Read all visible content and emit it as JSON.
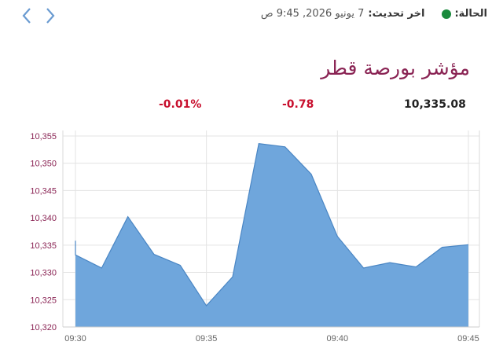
{
  "nav": {
    "prev_icon": "chevron-left-icon",
    "next_icon": "chevron-right-icon"
  },
  "status": {
    "label": "الحالة:",
    "indicator_color": "#1a8a3c",
    "update_label": "اخر تحديث:",
    "update_value": "7 يونيو 2026, 9:45 ص"
  },
  "title": "مؤشر بورصة قطر",
  "stats": {
    "value": "10,335.08",
    "change": "-0.78",
    "change_pct": "-0.01%"
  },
  "colors": {
    "accent": "#8a2454",
    "negative": "#c8102e",
    "area_fill": "#6fa6dc",
    "area_line": "#4a86c4"
  },
  "chart_data": {
    "type": "area",
    "x": [
      "09:30",
      "09:31",
      "09:32",
      "09:33",
      "09:34",
      "09:35",
      "09:36",
      "09:37",
      "09:38",
      "09:39",
      "09:40",
      "09:41",
      "09:42",
      "09:43",
      "09:44",
      "09:45"
    ],
    "values": [
      10333.2,
      10330.8,
      10340.2,
      10333.3,
      10331.3,
      10323.9,
      10329.2,
      10353.6,
      10353.0,
      10348.0,
      10336.6,
      10330.8,
      10331.8,
      10331.0,
      10334.6,
      10335.08
    ],
    "start_value": 10335.8,
    "yticks": [
      "10,320",
      "10,325",
      "10,330",
      "10,335",
      "10,340",
      "10,345",
      "10,350",
      "10,355"
    ],
    "xticks": [
      "09:30",
      "09:35",
      "09:40",
      "09:45"
    ],
    "ylim": [
      10320,
      10356
    ],
    "grid": true
  }
}
